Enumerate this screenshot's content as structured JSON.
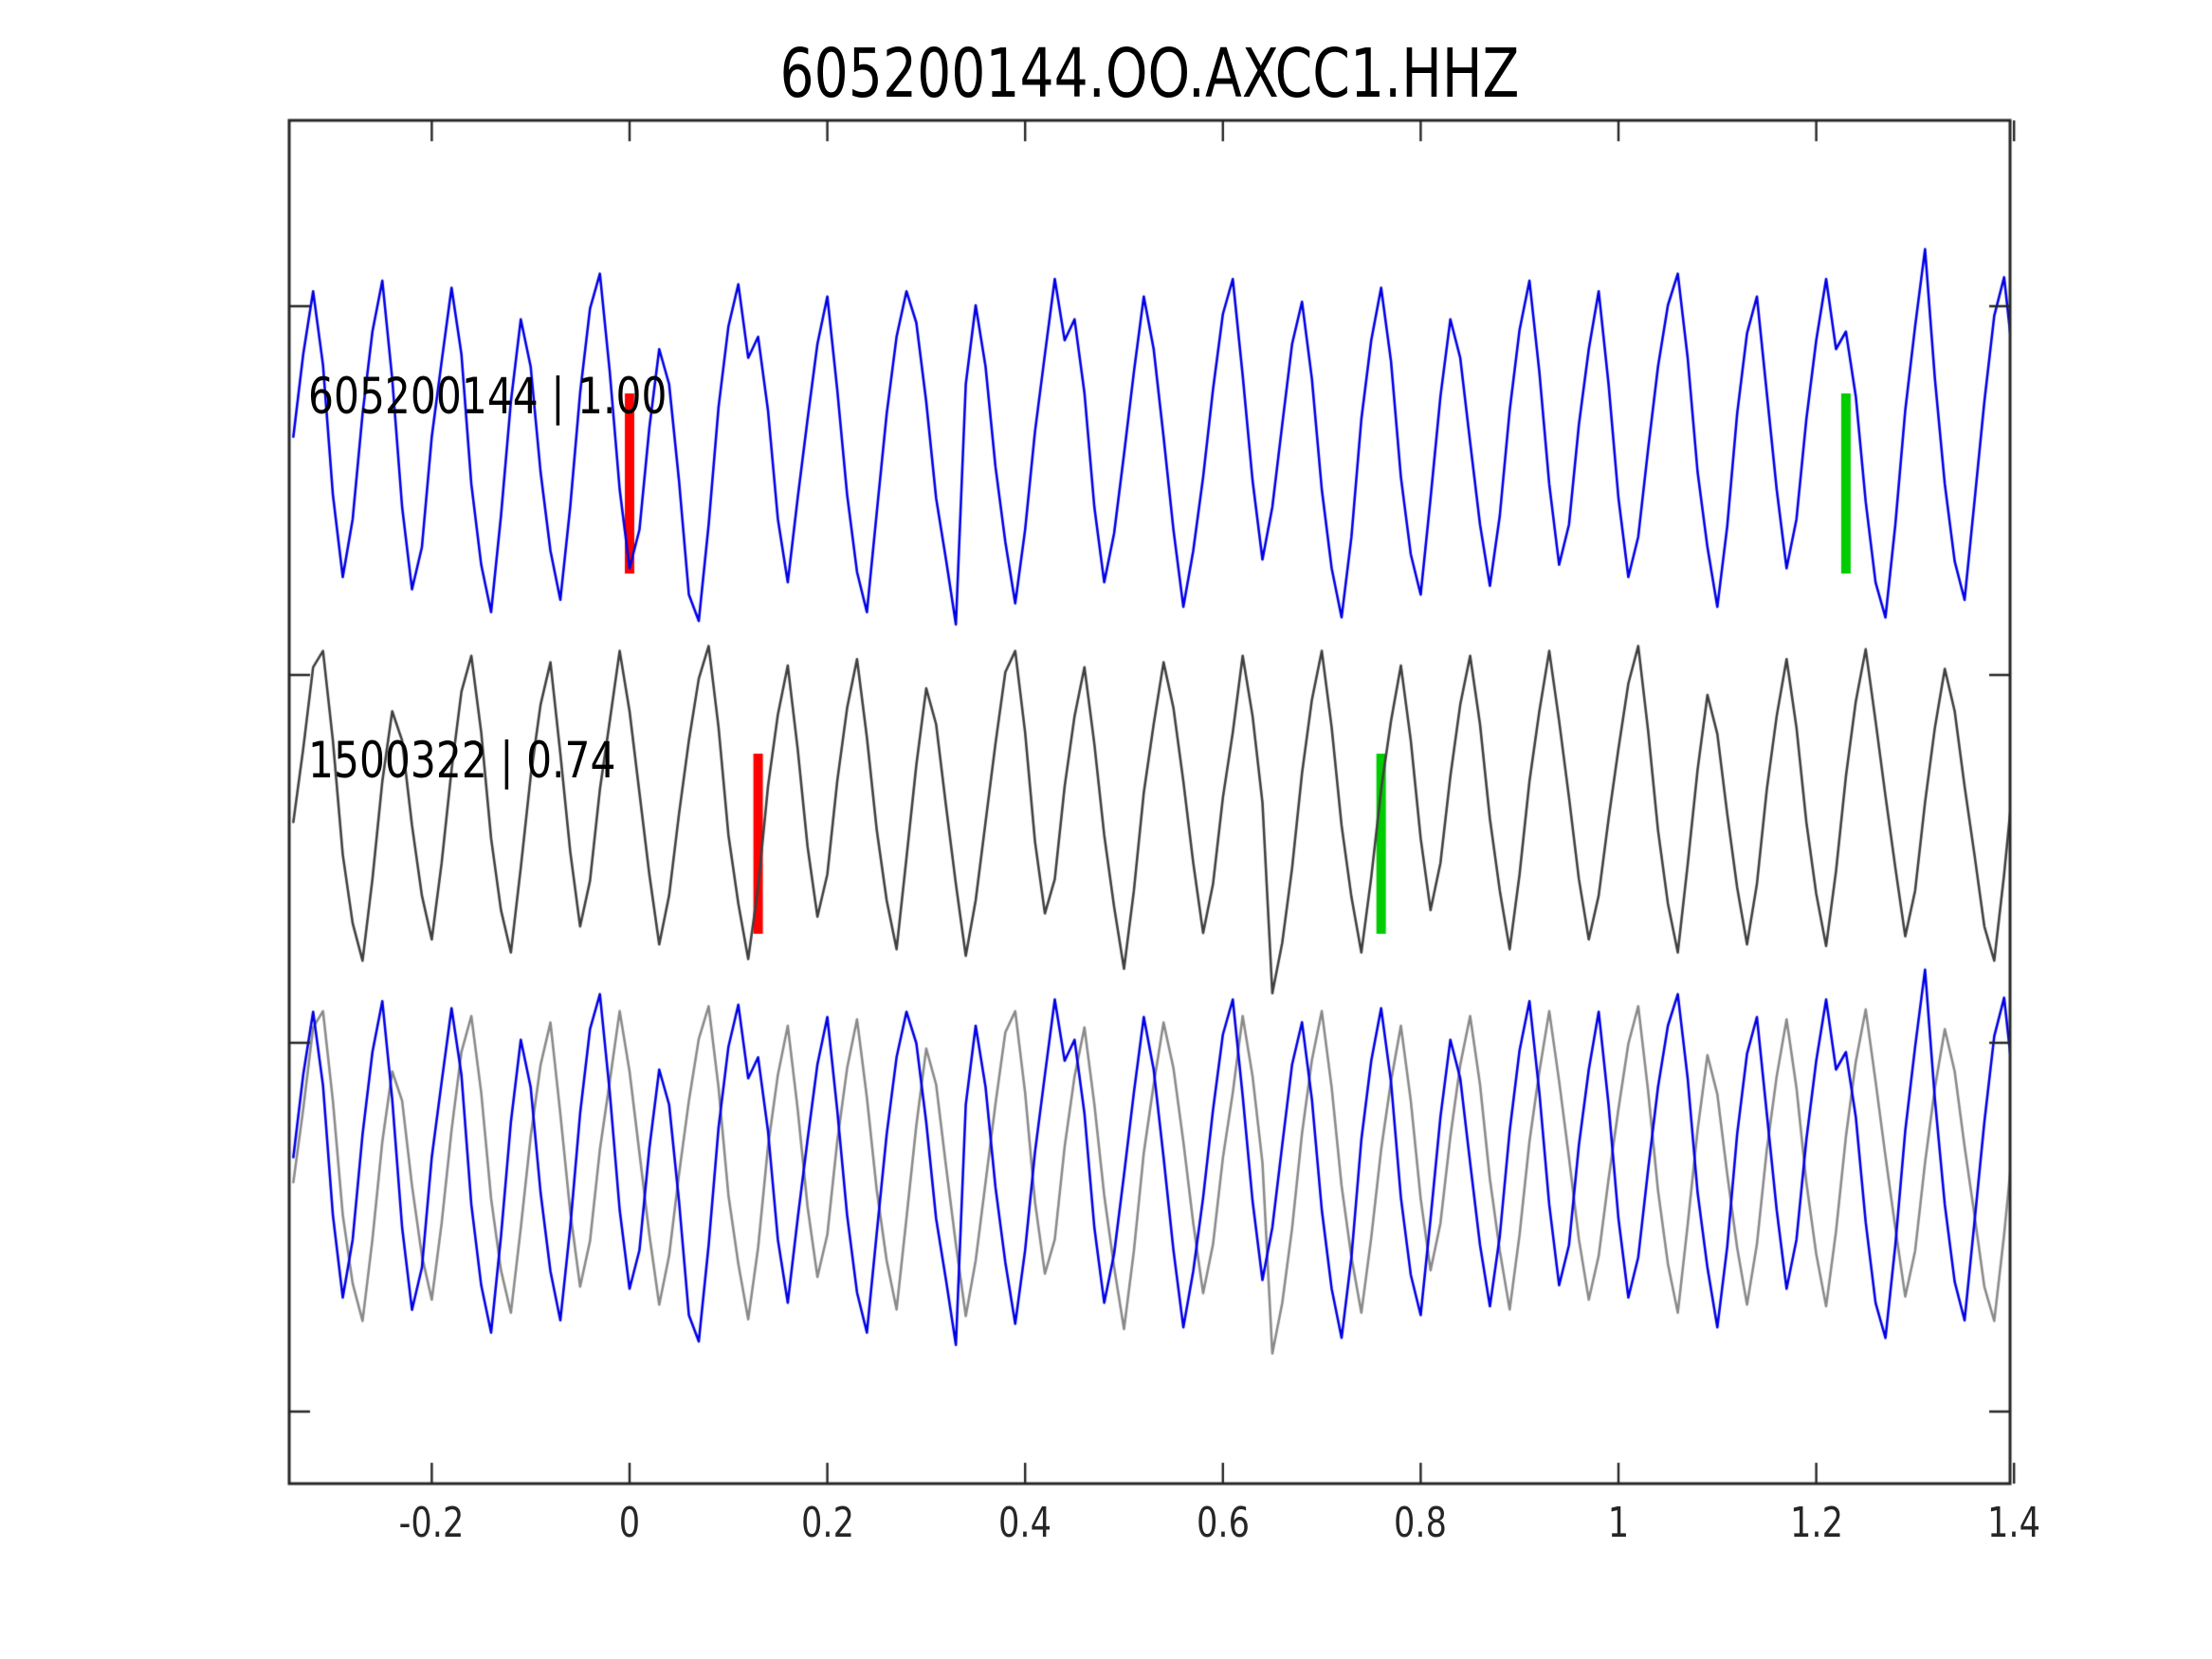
{
  "figure": {
    "title": "605200144.OO.AXCC1.HHZ"
  },
  "chart_data": {
    "type": "line",
    "title": "605200144.OO.AXCC1.HHZ",
    "xlabel": "",
    "ylabel": "",
    "xlim": [
      -0.344,
      1.4
    ],
    "grid": false,
    "legend": "none",
    "x_start": -0.34,
    "sample_interval": 0.01,
    "x_tick_values": [
      -0.2,
      0,
      0.2,
      0.4,
      0.6,
      0.8,
      1,
      1.2,
      1.4
    ],
    "x_tick_labels": [
      "-0.2",
      "0",
      "0.2",
      "0.4",
      "0.6",
      "0.8",
      "1",
      "1.2",
      "1.4"
    ],
    "colors": {
      "template_trace": "#0000e6",
      "detection_trace": "#404040",
      "overlay_gray": "#8a8a8a",
      "pick_red": "#ff0000",
      "pick_green": "#00cc00",
      "axis": "#262626"
    },
    "traces": [
      {
        "id": "605200144",
        "correlation": "1.00",
        "label": "605200144 | 1.00",
        "color": "#0000e6",
        "row": 0,
        "values": [
          0.05,
          0.52,
          0.88,
          0.46,
          -0.28,
          -0.75,
          -0.42,
          0.18,
          0.65,
          0.94,
          0.38,
          -0.35,
          -0.82,
          -0.58,
          0.05,
          0.48,
          0.9,
          0.52,
          -0.22,
          -0.68,
          -0.95,
          -0.4,
          0.25,
          0.72,
          0.45,
          -0.15,
          -0.6,
          -0.88,
          -0.35,
          0.3,
          0.78,
          0.98,
          0.42,
          -0.25,
          -0.7,
          -0.48,
          0.1,
          0.55,
          0.35,
          -0.2,
          -0.85,
          -1.0,
          -0.45,
          0.22,
          0.68,
          0.92,
          0.5,
          0.62,
          0.2,
          -0.42,
          -0.78,
          -0.3,
          0.15,
          0.58,
          0.85,
          0.32,
          -0.28,
          -0.72,
          -0.95,
          -0.38,
          0.18,
          0.62,
          0.88,
          0.7,
          0.25,
          -0.3,
          -0.65,
          -1.02,
          0.35,
          0.8,
          0.45,
          -0.12,
          -0.55,
          -0.9,
          -0.48,
          0.08,
          0.52,
          0.95,
          0.6,
          0.72,
          0.3,
          -0.35,
          -0.78,
          -0.5,
          -0.05,
          0.42,
          0.85,
          0.55,
          0.05,
          -0.48,
          -0.92,
          -0.6,
          -0.18,
          0.32,
          0.75,
          0.95,
          0.4,
          -0.2,
          -0.65,
          -0.35,
          0.12,
          0.58,
          0.82,
          0.38,
          -0.25,
          -0.7,
          -0.98,
          -0.52,
          0.15,
          0.6,
          0.9,
          0.48,
          -0.18,
          -0.62,
          -0.85,
          -0.3,
          0.28,
          0.72,
          0.5,
          0.02,
          -0.45,
          -0.8,
          -0.4,
          0.2,
          0.66,
          0.94,
          0.42,
          -0.22,
          -0.68,
          -0.45,
          0.12,
          0.55,
          0.88,
          0.35,
          -0.3,
          -0.75,
          -0.52,
          -0.02,
          0.45,
          0.8,
          0.98,
          0.5,
          -0.15,
          -0.58,
          -0.92,
          -0.46,
          0.18,
          0.64,
          0.85,
          0.3,
          -0.25,
          -0.7,
          -0.42,
          0.15,
          0.6,
          0.95,
          0.55,
          0.65,
          0.28,
          -0.32,
          -0.78,
          -0.98,
          -0.45,
          0.2,
          0.68,
          1.12,
          0.38,
          -0.22,
          -0.66,
          -0.88,
          -0.32,
          0.25,
          0.74,
          0.96,
          0.44
        ]
      },
      {
        "id": "1500322",
        "correlation": "0.74",
        "label": "1500322 | 0.74",
        "color": "#404040",
        "row": 1,
        "values": [
          -0.1,
          0.35,
          0.85,
          0.95,
          0.4,
          -0.3,
          -0.72,
          -0.95,
          -0.45,
          0.15,
          0.58,
          0.4,
          -0.12,
          -0.55,
          -0.82,
          -0.35,
          0.22,
          0.7,
          0.92,
          0.45,
          -0.2,
          -0.64,
          -0.9,
          -0.38,
          0.18,
          0.62,
          0.88,
          0.32,
          -0.28,
          -0.74,
          -0.46,
          0.1,
          0.52,
          0.95,
          0.58,
          0.08,
          -0.42,
          -0.85,
          -0.55,
          -0.05,
          0.4,
          0.78,
          0.98,
          0.48,
          -0.18,
          -0.6,
          -0.94,
          -0.5,
          0.12,
          0.56,
          0.86,
          0.35,
          -0.25,
          -0.68,
          -0.42,
          0.15,
          0.6,
          0.9,
          0.42,
          -0.15,
          -0.58,
          -0.88,
          -0.32,
          0.25,
          0.72,
          0.5,
          0.0,
          -0.48,
          -0.92,
          -0.58,
          -0.1,
          0.38,
          0.82,
          0.95,
          0.45,
          -0.22,
          -0.66,
          -0.45,
          0.12,
          0.55,
          0.85,
          0.38,
          -0.18,
          -0.62,
          -1.0,
          -0.52,
          0.08,
          0.5,
          0.88,
          0.6,
          0.15,
          -0.35,
          -0.78,
          -0.48,
          0.05,
          0.45,
          0.92,
          0.55,
          0.02,
          -1.15,
          -0.84,
          -0.38,
          0.2,
          0.65,
          0.95,
          0.48,
          -0.12,
          -0.56,
          -0.9,
          -0.44,
          0.1,
          0.52,
          0.86,
          0.4,
          -0.2,
          -0.64,
          -0.35,
          0.18,
          0.62,
          0.92,
          0.5,
          -0.08,
          -0.52,
          -0.88,
          -0.42,
          0.15,
          0.58,
          0.95,
          0.52,
          0.05,
          -0.45,
          -0.82,
          -0.55,
          -0.08,
          0.35,
          0.75,
          0.98,
          0.46,
          -0.15,
          -0.6,
          -0.9,
          -0.36,
          0.22,
          0.68,
          0.44,
          -0.05,
          -0.5,
          -0.85,
          -0.48,
          0.1,
          0.55,
          0.9,
          0.48,
          -0.1,
          -0.54,
          -0.86,
          -0.4,
          0.18,
          0.64,
          0.96,
          0.52,
          0.06,
          -0.38,
          -0.8,
          -0.52,
          0.02,
          0.48,
          0.84,
          0.58,
          0.12,
          -0.3,
          -0.74,
          -0.95,
          -0.42,
          0.2
        ]
      }
    ],
    "overlay": {
      "description": "both traces superimposed in bottom row",
      "blue_trace": 0,
      "gray_trace": 1,
      "gray_color": "#8a8a8a",
      "gray_shift": 0
    },
    "markers": [
      {
        "trace": 0,
        "x": 0.0,
        "color": "#ff0000",
        "pick": "red-pick"
      },
      {
        "trace": 0,
        "x": 1.23,
        "color": "#00cc00",
        "pick": "green-pick"
      },
      {
        "trace": 1,
        "x": 0.13,
        "color": "#ff0000",
        "pick": "red-pick"
      },
      {
        "trace": 1,
        "x": 0.76,
        "color": "#00cc00",
        "pick": "green-pick"
      }
    ]
  }
}
